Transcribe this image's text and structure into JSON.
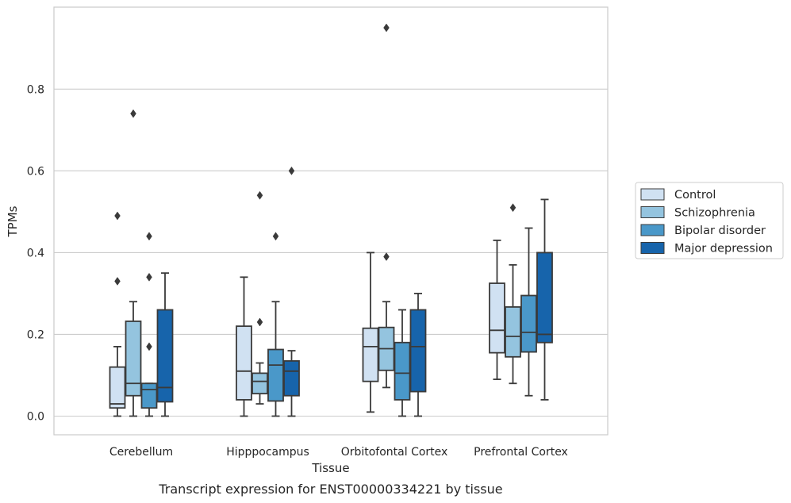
{
  "caption": "Transcript expression for ENST00000334221 by tissue",
  "chart_data": {
    "type": "boxplot",
    "xlabel": "Tissue",
    "ylabel": "TPMs",
    "ylim": [
      -0.045,
      0.985
    ],
    "yticks": [
      0.0,
      0.2,
      0.4,
      0.6,
      0.8
    ],
    "ytick_labels": [
      "0.0",
      "0.2",
      "0.4",
      "0.6",
      "0.8"
    ],
    "grid": "horizontal",
    "legend_position": "right",
    "categories": [
      "Cerebellum",
      "Hipppocampus",
      "Orbitofontal Cortex",
      "Prefrontal Cortex"
    ],
    "series": [
      {
        "name": "Control",
        "color": "#d0e1f2",
        "boxes": [
          {
            "whislo": 0.0,
            "q1": 0.02,
            "med": 0.03,
            "q3": 0.12,
            "whishi": 0.17,
            "fliers": [
              0.33,
              0.49
            ]
          },
          {
            "whislo": 0.0,
            "q1": 0.04,
            "med": 0.11,
            "q3": 0.22,
            "whishi": 0.34,
            "fliers": []
          },
          {
            "whislo": 0.01,
            "q1": 0.085,
            "med": 0.17,
            "q3": 0.215,
            "whishi": 0.4,
            "fliers": []
          },
          {
            "whislo": 0.09,
            "q1": 0.155,
            "med": 0.21,
            "q3": 0.325,
            "whishi": 0.43,
            "fliers": []
          }
        ]
      },
      {
        "name": "Schizophrenia",
        "color": "#94c4df",
        "boxes": [
          {
            "whislo": 0.0,
            "q1": 0.05,
            "med": 0.08,
            "q3": 0.232,
            "whishi": 0.28,
            "fliers": [
              0.74
            ]
          },
          {
            "whislo": 0.03,
            "q1": 0.055,
            "med": 0.085,
            "q3": 0.105,
            "whishi": 0.13,
            "fliers": [
              0.23,
              0.54
            ]
          },
          {
            "whislo": 0.07,
            "q1": 0.112,
            "med": 0.165,
            "q3": 0.217,
            "whishi": 0.28,
            "fliers": [
              0.39,
              0.95
            ]
          },
          {
            "whislo": 0.08,
            "q1": 0.145,
            "med": 0.195,
            "q3": 0.267,
            "whishi": 0.37,
            "fliers": [
              0.51
            ]
          }
        ]
      },
      {
        "name": "Bipolar disorder",
        "color": "#4a98c9",
        "boxes": [
          {
            "whislo": 0.0,
            "q1": 0.02,
            "med": 0.065,
            "q3": 0.08,
            "whishi": 0.08,
            "fliers": [
              0.17,
              0.34,
              0.44
            ]
          },
          {
            "whislo": 0.0,
            "q1": 0.037,
            "med": 0.125,
            "q3": 0.163,
            "whishi": 0.28,
            "fliers": [
              0.44
            ]
          },
          {
            "whislo": 0.0,
            "q1": 0.04,
            "med": 0.105,
            "q3": 0.18,
            "whishi": 0.26,
            "fliers": []
          },
          {
            "whislo": 0.05,
            "q1": 0.157,
            "med": 0.205,
            "q3": 0.295,
            "whishi": 0.46,
            "fliers": []
          }
        ]
      },
      {
        "name": "Major depression",
        "color": "#1764ab",
        "boxes": [
          {
            "whislo": 0.0,
            "q1": 0.035,
            "med": 0.07,
            "q3": 0.26,
            "whishi": 0.35,
            "fliers": []
          },
          {
            "whislo": 0.0,
            "q1": 0.05,
            "med": 0.11,
            "q3": 0.135,
            "whishi": 0.16,
            "fliers": [
              0.6
            ]
          },
          {
            "whislo": 0.0,
            "q1": 0.06,
            "med": 0.17,
            "q3": 0.26,
            "whishi": 0.3,
            "fliers": []
          },
          {
            "whislo": 0.04,
            "q1": 0.18,
            "med": 0.2,
            "q3": 0.4,
            "whishi": 0.53,
            "fliers": []
          }
        ]
      }
    ]
  }
}
